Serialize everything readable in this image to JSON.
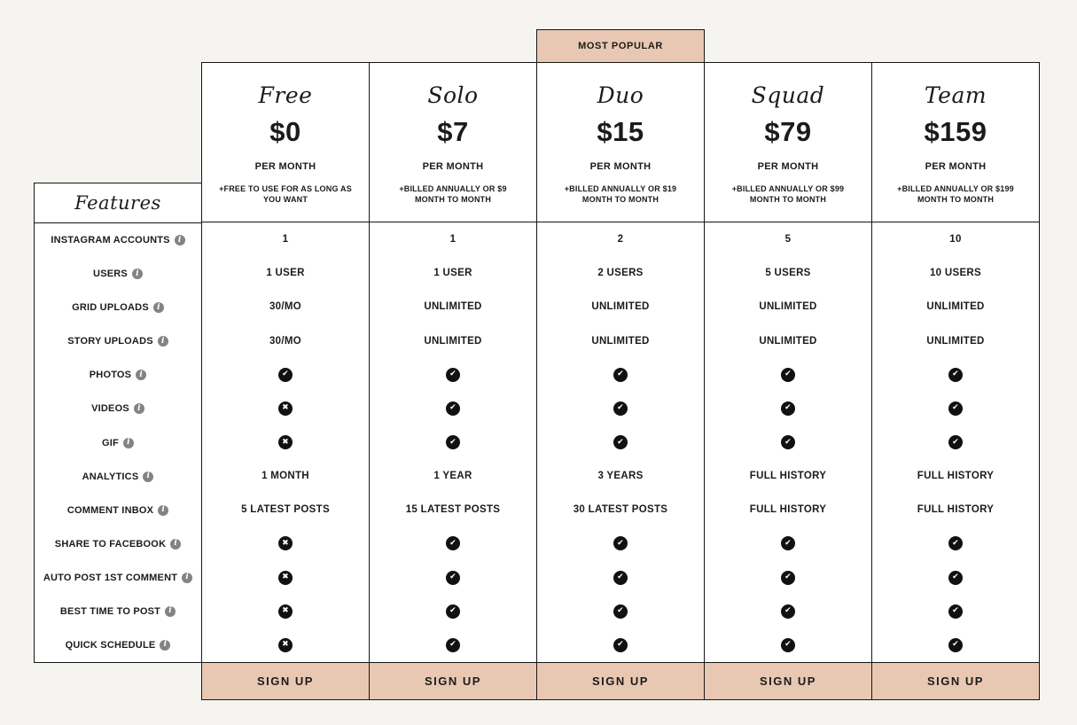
{
  "theme": {
    "background": "#f5f4f1",
    "panel": "#ffffff",
    "accent": "#e9c8b3",
    "border": "#161616",
    "text": "#1b1b1b",
    "info_icon_color": "#838383",
    "mark_circle_color": "#111111"
  },
  "badge": {
    "label": "MOST POPULAR"
  },
  "features_header": "Features",
  "icons": {
    "check": "✔",
    "cross": "✖",
    "info": "i"
  },
  "features": [
    {
      "label": "INSTAGRAM ACCOUNTS"
    },
    {
      "label": "USERS"
    },
    {
      "label": "GRID UPLOADS"
    },
    {
      "label": "STORY UPLOADS"
    },
    {
      "label": "PHOTOS"
    },
    {
      "label": "VIDEOS"
    },
    {
      "label": "GIF"
    },
    {
      "label": "ANALYTICS"
    },
    {
      "label": "COMMENT INBOX"
    },
    {
      "label": "SHARE TO FACEBOOK"
    },
    {
      "label": "AUTO POST 1ST COMMENT"
    },
    {
      "label": "BEST TIME TO POST"
    },
    {
      "label": "QUICK SCHEDULE"
    }
  ],
  "plans": [
    {
      "name": "Free",
      "price": "$0",
      "period": "PER MONTH",
      "note_line1": "+FREE TO USE FOR AS LONG AS",
      "note_line2": "YOU WANT",
      "most_popular": false,
      "cta": "SIGN UP",
      "values": [
        "1",
        "1 USER",
        "30/MO",
        "30/MO",
        "check",
        "cross",
        "cross",
        "1 MONTH",
        "5 LATEST POSTS",
        "cross",
        "cross",
        "cross",
        "cross"
      ]
    },
    {
      "name": "Solo",
      "price": "$7",
      "period": "PER MONTH",
      "note_line1": "+BILLED ANNUALLY OR $9",
      "note_line2": "MONTH TO MONTH",
      "most_popular": false,
      "cta": "SIGN UP",
      "values": [
        "1",
        "1 USER",
        "UNLIMITED",
        "UNLIMITED",
        "check",
        "check",
        "check",
        "1 YEAR",
        "15 LATEST POSTS",
        "check",
        "check",
        "check",
        "check"
      ]
    },
    {
      "name": "Duo",
      "price": "$15",
      "period": "PER MONTH",
      "note_line1": "+BILLED ANNUALLY OR $19",
      "note_line2": "MONTH TO MONTH",
      "most_popular": true,
      "cta": "SIGN UP",
      "values": [
        "2",
        "2 USERS",
        "UNLIMITED",
        "UNLIMITED",
        "check",
        "check",
        "check",
        "3 YEARS",
        "30 LATEST POSTS",
        "check",
        "check",
        "check",
        "check"
      ]
    },
    {
      "name": "Squad",
      "price": "$79",
      "period": "PER MONTH",
      "note_line1": "+BILLED ANNUALLY OR $99",
      "note_line2": "MONTH TO MONTH",
      "most_popular": false,
      "cta": "SIGN UP",
      "values": [
        "5",
        "5 USERS",
        "UNLIMITED",
        "UNLIMITED",
        "check",
        "check",
        "check",
        "FULL HISTORY",
        "FULL HISTORY",
        "check",
        "check",
        "check",
        "check"
      ]
    },
    {
      "name": "Team",
      "price": "$159",
      "period": "PER MONTH",
      "note_line1": "+BILLED ANNUALLY OR $199",
      "note_line2": "MONTH TO MONTH",
      "most_popular": false,
      "cta": "SIGN UP",
      "values": [
        "10",
        "10 USERS",
        "UNLIMITED",
        "UNLIMITED",
        "check",
        "check",
        "check",
        "FULL HISTORY",
        "FULL HISTORY",
        "check",
        "check",
        "check",
        "check"
      ]
    }
  ]
}
